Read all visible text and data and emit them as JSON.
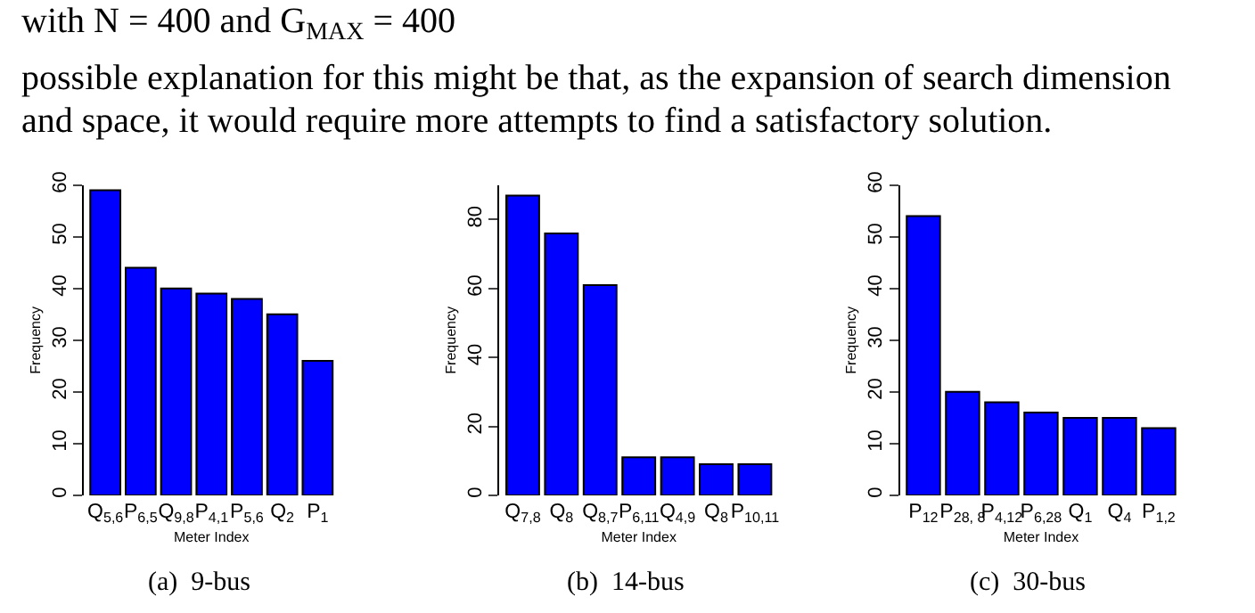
{
  "chart_data": [
    {
      "type": "bar",
      "xlabel": "Meter Index",
      "ylabel": "Frequency",
      "categories": [
        "Q$_{5,6}$",
        "P$_{6,5}$",
        "Q$_{9,8}$",
        "P$_{4,1}$",
        "P$_{5,6}$",
        "Q$_{2}$",
        "P$_{1}$"
      ],
      "values": [
        59,
        44,
        40,
        39,
        38,
        35,
        26
      ],
      "color": "#0000ff",
      "ylim": [
        0,
        60
      ],
      "yticks": [
        0,
        10,
        20,
        30,
        40,
        50,
        60
      ],
      "annotations": [
        "with N = 400 and G$_{MAX}$ = 400",
        "possible explanation for this might be that, as the expansion of search dimension",
        "and space, it would require more attempts to find a satisfactory solution.",
        "(a)  9-bus"
      ]
    },
    {
      "type": "bar",
      "xlabel": "Meter Index",
      "ylabel": "Frequency",
      "categories": [
        "Q$_{7,8}$",
        "Q$_{8}$",
        "Q$_{8,7}$",
        "P$_{6,11}$",
        "Q$_{4,9}$",
        "Q$_{8}$",
        "P$_{10,11}$"
      ],
      "values": [
        87,
        76,
        61,
        11,
        11,
        9,
        9
      ],
      "color": "#0000ff",
      "ylim": [
        0,
        90
      ],
      "yticks": [
        0,
        20,
        40,
        60,
        80
      ],
      "annotations": [
        "(b)  14-bus"
      ]
    },
    {
      "type": "bar",
      "xlabel": "Meter Index",
      "ylabel": "Frequency",
      "categories": [
        "P$_{12}$",
        "P$_{28, 8}$",
        "P$_{4,12}$",
        "P$_{6,28}$",
        "Q$_{1}$",
        "Q$_{4}$",
        "P$_{1,2}$"
      ],
      "values": [
        54,
        20,
        18,
        16,
        15,
        15,
        13
      ],
      "color": "#0000ff",
      "ylim": [
        0,
        60
      ],
      "yticks": [
        0,
        10,
        20,
        30,
        40,
        50,
        60
      ],
      "annotations": [
        "(c)  30-bus"
      ]
    }
  ]
}
